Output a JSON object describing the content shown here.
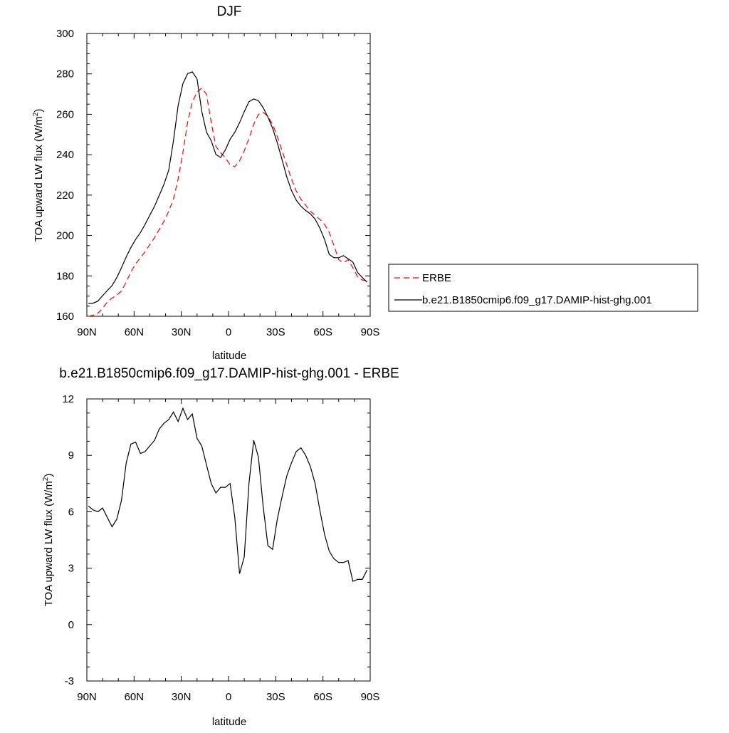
{
  "chart_data": [
    {
      "type": "line",
      "title": "DJF",
      "xlabel": "latitude",
      "ylabel_main": "TOA upward LW flux (W/m",
      "ylabel_sup": "2",
      "ylabel_end": ")",
      "xlim": [
        90,
        -90
      ],
      "ylim": [
        160,
        300
      ],
      "xticks": [
        90,
        60,
        30,
        0,
        -30,
        -60,
        -90
      ],
      "xtick_labels": [
        "90N",
        "60N",
        "30N",
        "0",
        "30S",
        "60S",
        "90S"
      ],
      "yticks": [
        160,
        180,
        200,
        220,
        240,
        260,
        280,
        300
      ],
      "ytick_labels": [
        "160",
        "180",
        "200",
        "220",
        "240",
        "260",
        "280",
        "300"
      ],
      "legend": {
        "placement": "right"
      },
      "series": [
        {
          "name": "ERBE",
          "color": "#ff0000",
          "style": "dashed",
          "x": [
            89,
            86,
            83,
            80,
            77,
            74,
            71,
            68,
            65,
            62,
            59,
            56,
            53,
            50,
            47,
            44,
            41,
            38,
            35,
            32,
            29,
            26,
            23,
            20,
            17,
            14,
            11,
            8,
            5,
            2,
            -1,
            -4,
            -7,
            -10,
            -13,
            -16,
            -19,
            -22,
            -25,
            -28,
            -31,
            -34,
            -37,
            -40,
            -43,
            -46,
            -49,
            -52,
            -55,
            -58,
            -61,
            -64,
            -67,
            -70,
            -73,
            -76,
            -79,
            -82,
            -85,
            -88
          ],
          "y": [
            160,
            160.5,
            161.5,
            164,
            167,
            169,
            170.5,
            172.5,
            177,
            182,
            186,
            189,
            192,
            195.5,
            199,
            203,
            207,
            212,
            218,
            228,
            241,
            256,
            266,
            271,
            273,
            270,
            256,
            244,
            241,
            238.5,
            235,
            234,
            237,
            242,
            248,
            255,
            260,
            261,
            259,
            255,
            249,
            242,
            235,
            228,
            222,
            218,
            215,
            212,
            210,
            208,
            205.5,
            201.5,
            195,
            188,
            186.5,
            188,
            184,
            179.5,
            178,
            177.5
          ]
        },
        {
          "name": "b.e21.B1850cmip6.f09_g17.DAMIP-hist-ghg.001",
          "color": "#000000",
          "style": "solid",
          "x": [
            89,
            86,
            83,
            80,
            77,
            74,
            71,
            68,
            65,
            62,
            59,
            56,
            53,
            50,
            47,
            44,
            41,
            38,
            35,
            32,
            29,
            26,
            23,
            20,
            17,
            14,
            11,
            8,
            5,
            2,
            -1,
            -4,
            -7,
            -10,
            -13,
            -16,
            -19,
            -22,
            -25,
            -28,
            -31,
            -34,
            -37,
            -40,
            -43,
            -46,
            -49,
            -52,
            -55,
            -58,
            -61,
            -64,
            -67,
            -70,
            -73,
            -76,
            -79,
            -82,
            -85,
            -88
          ],
          "y": [
            166.3,
            166.5,
            167.5,
            170.2,
            172.7,
            175.2,
            179.1,
            184,
            189.4,
            194.1,
            198,
            201.4,
            205.5,
            210,
            214.5,
            219.9,
            225.3,
            232.3,
            246.7,
            264.3,
            275.1,
            280.1,
            281,
            277.5,
            261.5,
            251.2,
            246.9,
            240.1,
            238.6,
            242.4,
            247.6,
            251.1,
            255.8,
            261.3,
            266.2,
            267.6,
            266.7,
            263.3,
            258.7,
            253.1,
            245.9,
            237.5,
            229,
            222.3,
            217.5,
            214.5,
            212.4,
            210.7,
            208.1,
            203.7,
            198,
            190.6,
            189,
            189,
            190,
            188.5,
            186.8,
            181.7,
            179.2,
            176.9
          ]
        }
      ]
    },
    {
      "type": "line",
      "title": "b.e21.B1850cmip6.f09_g17.DAMIP-hist-ghg.001 - ERBE",
      "xlabel": "latitude",
      "ylabel_main": "TOA upward LW flux (W/m",
      "ylabel_sup": "2",
      "ylabel_end": ")",
      "xlim": [
        90,
        -90
      ],
      "ylim": [
        -3,
        12
      ],
      "xticks": [
        90,
        60,
        30,
        0,
        -30,
        -60,
        -90
      ],
      "xtick_labels": [
        "90N",
        "60N",
        "30N",
        "0",
        "30S",
        "60S",
        "90S"
      ],
      "yticks": [
        -3,
        0,
        3,
        6,
        9,
        12
      ],
      "ytick_labels": [
        "-3",
        "0",
        "3",
        "6",
        "9",
        "12"
      ],
      "series": [
        {
          "color": "#000000",
          "style": "solid",
          "x": [
            89,
            86,
            83,
            80,
            77,
            74,
            71,
            68,
            65,
            62,
            59,
            56,
            53,
            50,
            47,
            44,
            41,
            38,
            35,
            32,
            29,
            26,
            23,
            20,
            17,
            14,
            11,
            8,
            5,
            2,
            -1,
            -4,
            -7,
            -10,
            -13,
            -16,
            -19,
            -22,
            -25,
            -28,
            -31,
            -34,
            -37,
            -40,
            -43,
            -46,
            -49,
            -52,
            -55,
            -58,
            -61,
            -64,
            -67,
            -70,
            -73,
            -76,
            -79,
            -82,
            -85,
            -88
          ],
          "y": [
            6.3,
            6.1,
            6,
            6.2,
            5.7,
            5.2,
            5.6,
            6.6,
            8.6,
            9.6,
            9.7,
            9.1,
            9.2,
            9.5,
            9.8,
            10.4,
            10.7,
            10.9,
            11.3,
            10.8,
            11.5,
            10.9,
            11.2,
            9.9,
            9.5,
            8.5,
            7.5,
            7,
            7.3,
            7.3,
            7.5,
            5.7,
            2.7,
            3.6,
            7.5,
            9.8,
            8.9,
            6.3,
            4.2,
            4,
            5.6,
            6.8,
            7.9,
            8.6,
            9.2,
            9.4,
            9,
            8.4,
            7.5,
            6.1,
            4.8,
            3.9,
            3.5,
            3.3,
            3.3,
            3.4,
            2.3,
            2.4,
            2.4,
            2.9
          ]
        }
      ]
    }
  ]
}
